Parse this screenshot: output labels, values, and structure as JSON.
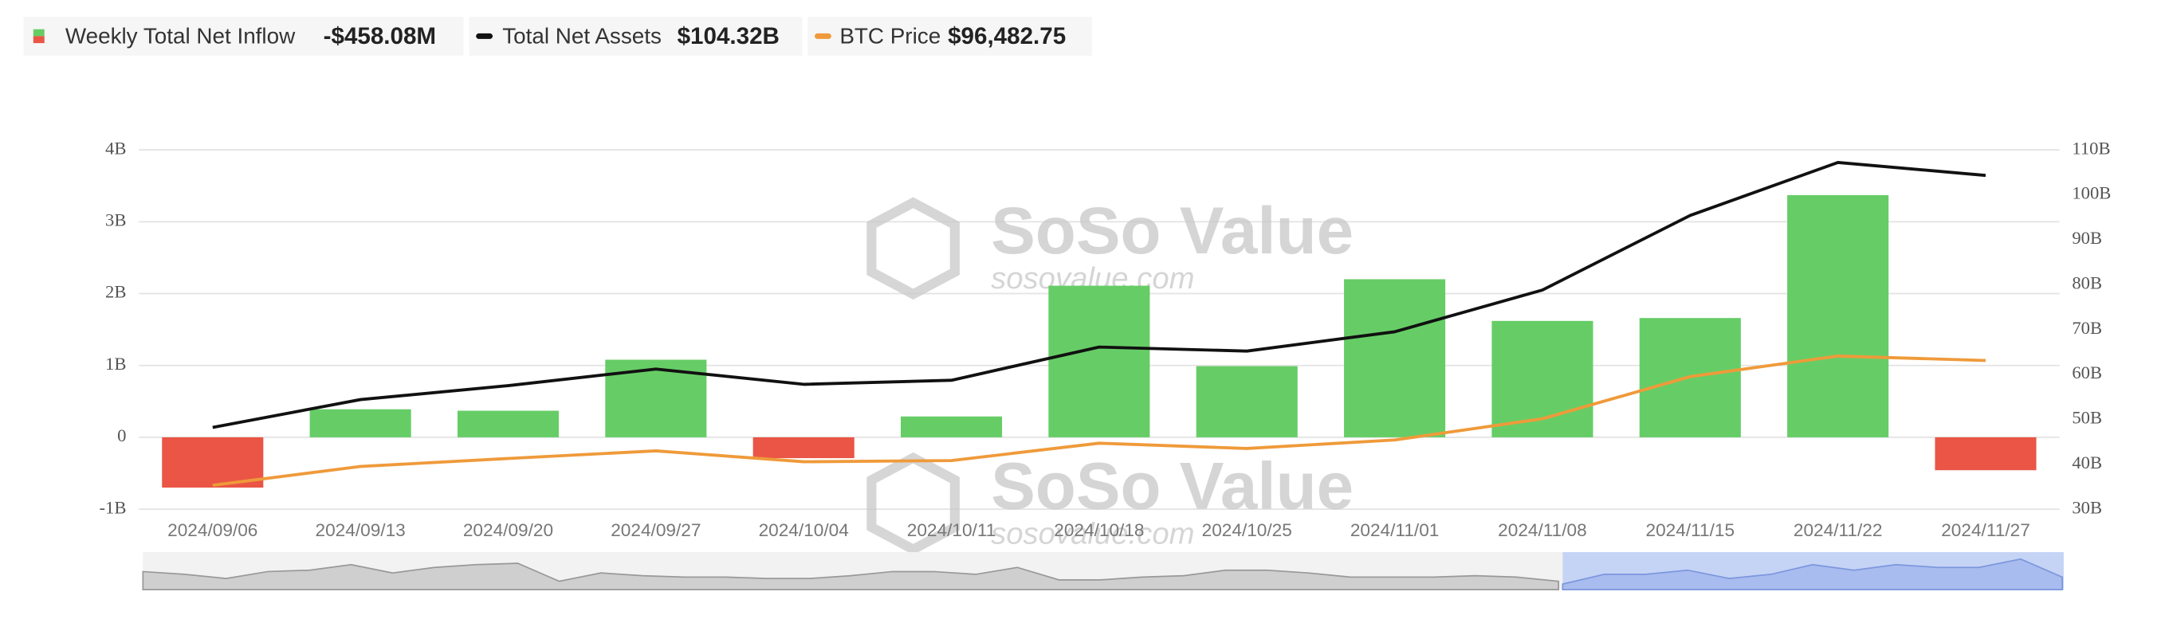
{
  "watermark": {
    "brand": "SoSo Value",
    "url": "sosovalue.com"
  },
  "chart_data": {
    "type": "bar-line",
    "categories": [
      "2024/09/06",
      "2024/09/13",
      "2024/09/20",
      "2024/09/27",
      "2024/10/04",
      "2024/10/11",
      "2024/10/18",
      "2024/10/25",
      "2024/11/01",
      "2024/11/08",
      "2024/11/15",
      "2024/11/22",
      "2024/11/27"
    ],
    "ylim": [
      -1,
      4
    ],
    "yticks": [
      {
        "value": -1,
        "label": "-1B"
      },
      0,
      {
        "value": 1,
        "label": "1B"
      },
      {
        "value": 2,
        "label": "2B"
      },
      {
        "value": 3,
        "label": "3B"
      },
      {
        "value": 4,
        "label": "4B"
      }
    ],
    "y2lim": [
      30,
      110
    ],
    "y2ticks": [
      {
        "value": 30,
        "label": "30B"
      },
      {
        "value": 40,
        "label": "40B"
      },
      {
        "value": 50,
        "label": "50B"
      },
      {
        "value": 60,
        "label": "60B"
      },
      {
        "value": 70,
        "label": "70B"
      },
      {
        "value": 80,
        "label": "80B"
      },
      {
        "value": 90,
        "label": "90B"
      },
      {
        "value": 100,
        "label": "100B"
      },
      {
        "value": 110,
        "label": "110B"
      }
    ],
    "y3lim": [
      46000,
      168000
    ],
    "grid": true,
    "series": [
      {
        "name": "Weekly Total Net Inflow",
        "type": "bar",
        "color": "#66cd66",
        "negative_color": "#ea5545",
        "legend_value": "-$458.08M",
        "values": [
          -0.7,
          0.39,
          0.37,
          1.08,
          -0.29,
          0.29,
          2.11,
          0.99,
          2.2,
          1.62,
          1.66,
          3.37,
          -0.45808
        ]
      },
      {
        "name": "Total Net Assets",
        "type": "line",
        "axis": "y2",
        "color": "#111111",
        "legend_value": "$104.32B",
        "values": [
          48.2,
          54.4,
          57.5,
          61.2,
          57.8,
          58.7,
          66.1,
          65.2,
          69.5,
          78.8,
          95.4,
          107.2,
          104.32
        ]
      },
      {
        "name": "BTC Price",
        "type": "line",
        "axis": "y3",
        "color": "#ef9a3a",
        "legend_value": "$96,482.75",
        "values": [
          54100,
          60500,
          63200,
          65800,
          62100,
          62500,
          68400,
          66600,
          69500,
          76700,
          91000,
          98000,
          96482.75
        ]
      }
    ]
  }
}
